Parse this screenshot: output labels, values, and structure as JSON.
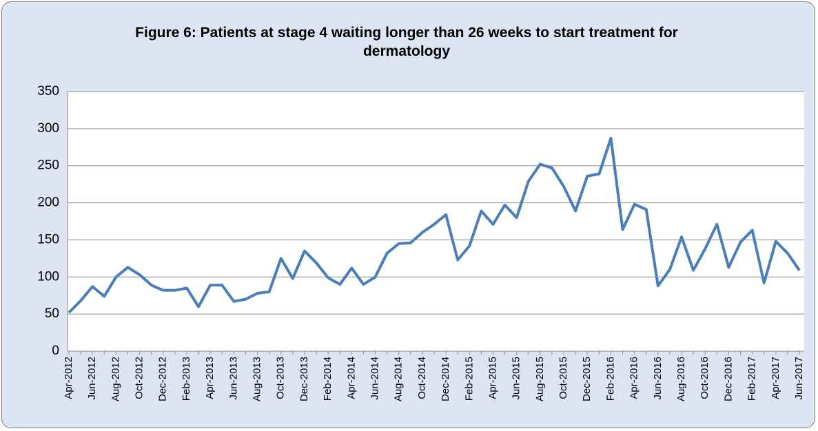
{
  "chart_data": {
    "type": "line",
    "title": "Figure 6: Patients at stage 4 waiting longer than 26 weeks to start treatment for dermatology",
    "categories": [
      "Apr-2012",
      null,
      "Jun-2012",
      null,
      "Aug-2012",
      null,
      "Oct-2012",
      null,
      "Dec-2012",
      null,
      "Feb-2013",
      null,
      "Apr-2013",
      null,
      "Jun-2013",
      null,
      "Aug-2013",
      null,
      "Oct-2013",
      null,
      "Dec-2013",
      null,
      "Feb-2014",
      null,
      "Apr-2014",
      null,
      "Jun-2014",
      null,
      "Aug-2014",
      null,
      "Oct-2014",
      null,
      "Dec-2014",
      null,
      "Feb-2015",
      null,
      "Apr-2015",
      null,
      "Jun-2015",
      null,
      "Aug-2015",
      null,
      "Oct-2015",
      null,
      "Dec-2015",
      null,
      "Feb-2016",
      null,
      "Apr-2016",
      null,
      "Jun-2016",
      null,
      "Aug-2016",
      null,
      "Oct-2016",
      null,
      "Dec-2016",
      null,
      "Feb-2017",
      null,
      "Apr-2017",
      null,
      "Jun-2017"
    ],
    "values": [
      52,
      68,
      87,
      74,
      100,
      113,
      103,
      89,
      82,
      82,
      85,
      60,
      89,
      89,
      67,
      70,
      78,
      80,
      125,
      98,
      135,
      119,
      99,
      90,
      112,
      90,
      100,
      132,
      145,
      146,
      160,
      171,
      184,
      123,
      142,
      189,
      171,
      197,
      180,
      229,
      252,
      247,
      222,
      189,
      236,
      239,
      287,
      164,
      198,
      191,
      88,
      110,
      154,
      109,
      138,
      171,
      113,
      147,
      163,
      92,
      148,
      132,
      109
    ],
    "color": "#4a7ebb",
    "ylim": [
      0,
      350
    ],
    "yticks": [
      0,
      50,
      100,
      150,
      200,
      250,
      300,
      350
    ],
    "grid": true
  }
}
